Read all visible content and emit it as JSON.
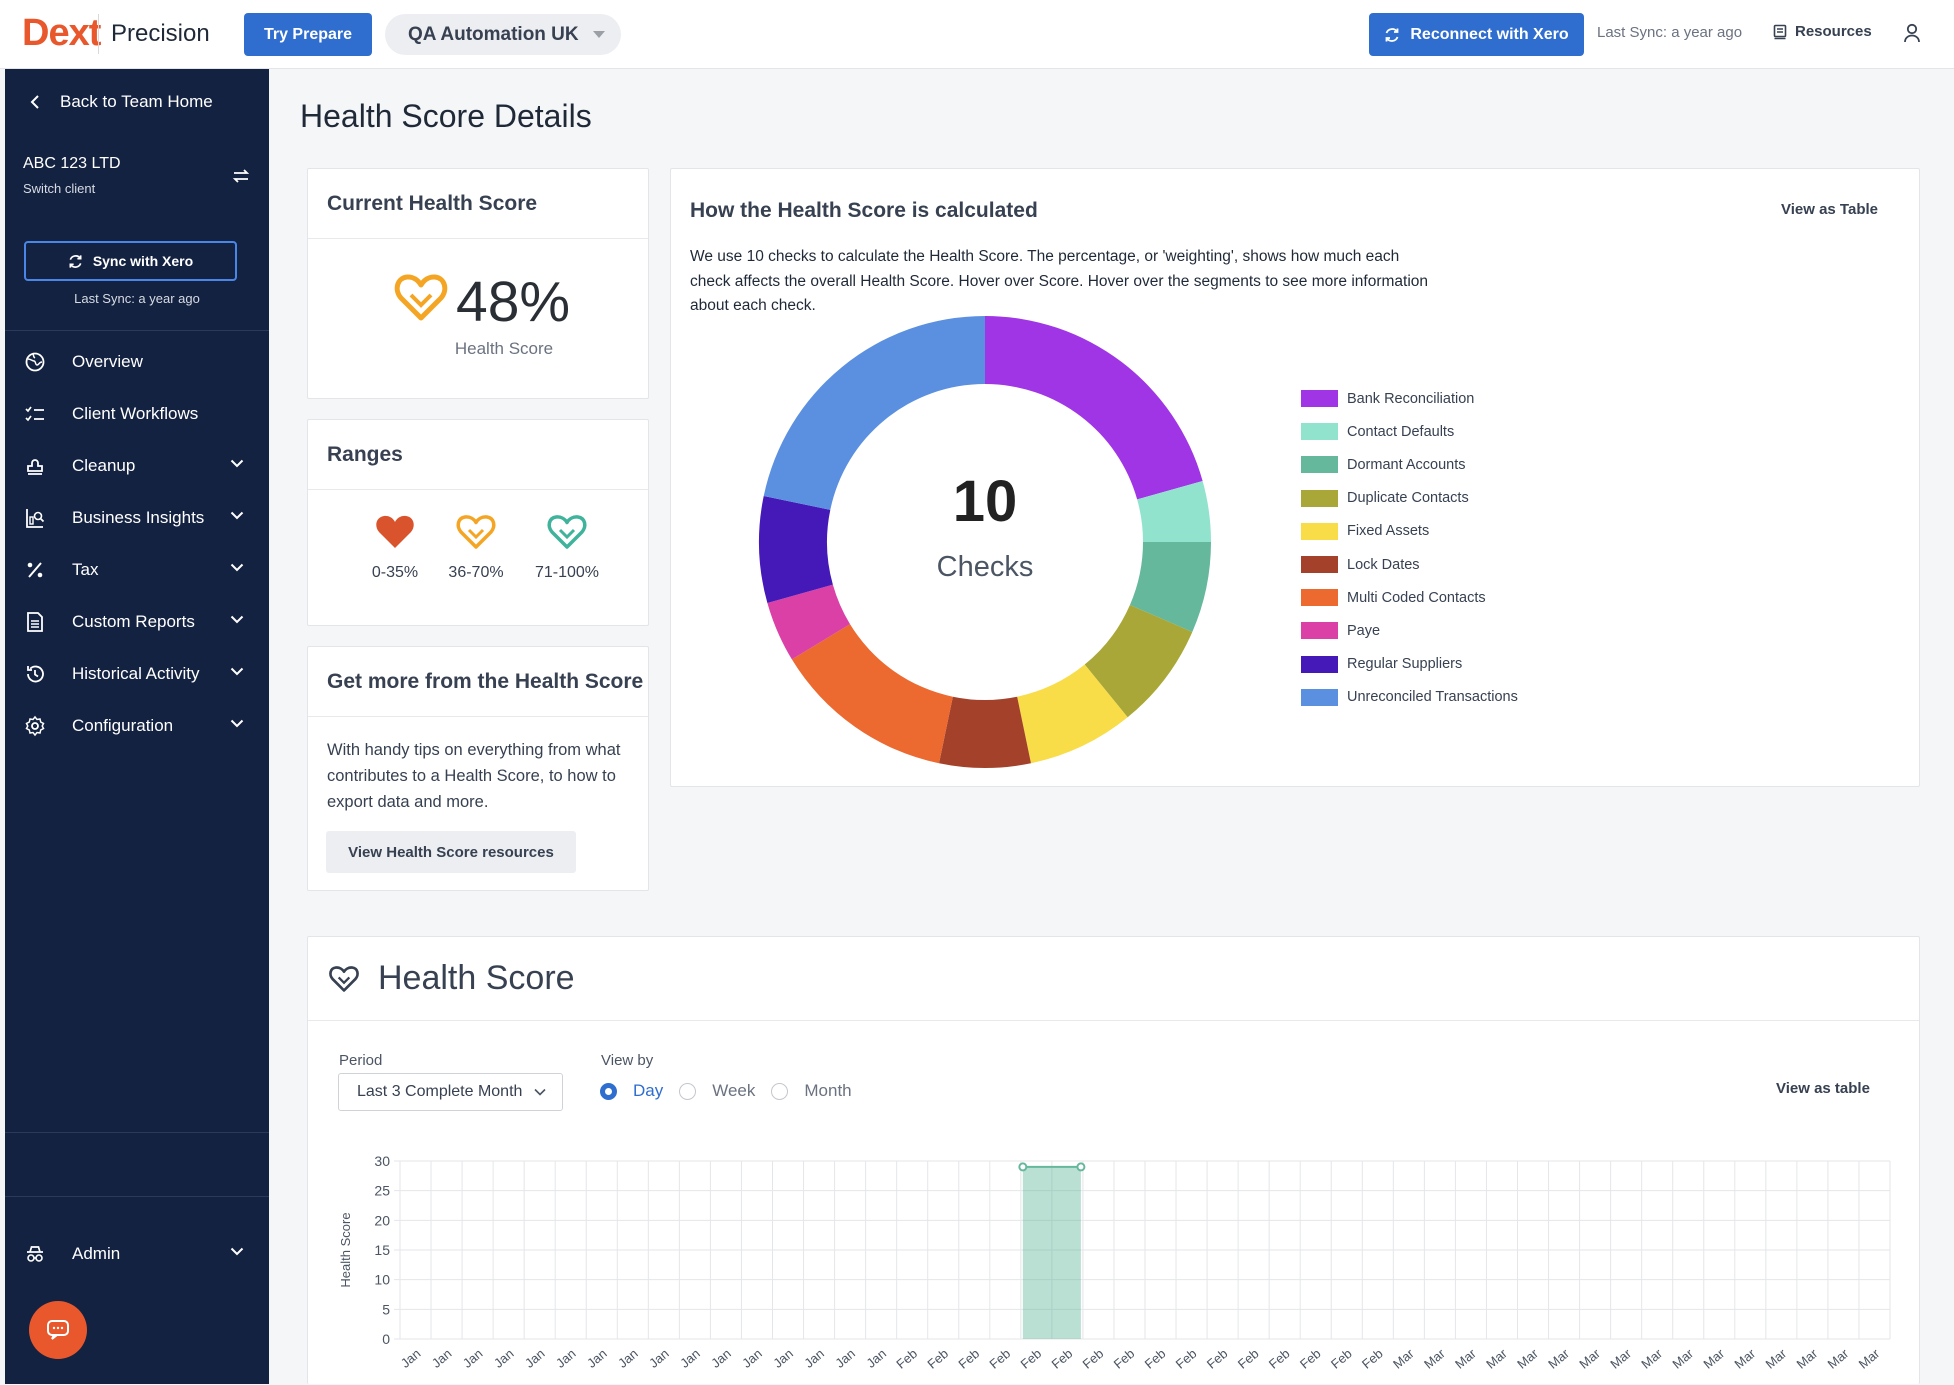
{
  "topbar": {
    "logo_brand": "Dext",
    "logo_product": "Precision",
    "try_prepare": "Try Prepare",
    "client_selector": "QA Automation UK",
    "reconnect": "Reconnect with Xero",
    "last_sync": "Last Sync: a year ago",
    "resources": "Resources"
  },
  "sidebar": {
    "back": "Back to Team Home",
    "client_name": "ABC 123 LTD",
    "switch_client": "Switch client",
    "sync_button": "Sync with Xero",
    "last_sync": "Last Sync: a year ago",
    "items": [
      {
        "label": "Overview",
        "icon": "globe-icon",
        "expandable": false
      },
      {
        "label": "Client Workflows",
        "icon": "checklist-icon",
        "expandable": false
      },
      {
        "label": "Cleanup",
        "icon": "stamp-icon",
        "expandable": true
      },
      {
        "label": "Business Insights",
        "icon": "chart-magnify-icon",
        "expandable": true
      },
      {
        "label": "Tax",
        "icon": "percent-icon",
        "expandable": true
      },
      {
        "label": "Custom Reports",
        "icon": "document-icon",
        "expandable": true
      },
      {
        "label": "Historical Activity",
        "icon": "history-icon",
        "expandable": true
      },
      {
        "label": "Configuration",
        "icon": "cog-icon",
        "expandable": true
      }
    ],
    "admin": "Admin"
  },
  "page": {
    "title": "Health Score Details"
  },
  "current_score": {
    "title": "Current Health Score",
    "value": "48%",
    "label": "Health Score",
    "accent": "#f5a524"
  },
  "ranges": {
    "title": "Ranges",
    "items": [
      {
        "label": "0-35%",
        "color": "#d9532c",
        "filled": true
      },
      {
        "label": "36-70%",
        "color": "#f5a524",
        "filled": false
      },
      {
        "label": "71-100%",
        "color": "#3fb39b",
        "filled": false
      }
    ]
  },
  "tips": {
    "title": "Get more from the Health Score",
    "text": "With handy tips on everything from what contributes to a Health Score, to how to export data and more.",
    "button": "View Health Score resources"
  },
  "calculation": {
    "title": "How the Health Score is calculated",
    "view_table": "View as Table",
    "description": "We use 10 checks to calculate the Health Score. The percentage, or 'weighting', shows how much each check affects the overall Health Score. Hover over Score. Hover over the segments to see more information about each check.",
    "center_value": "10",
    "center_label": "Checks"
  },
  "health_history": {
    "title": "Health Score",
    "period_label": "Period",
    "period_value": "Last 3 Complete Month",
    "view_by_label": "View by",
    "view_by_options": [
      "Day",
      "Week",
      "Month"
    ],
    "view_by_selected": "Day",
    "view_table": "View as table"
  },
  "chart_data": [
    {
      "type": "pie",
      "center_text": "10 Checks",
      "categories": [
        "Bank Reconciliation",
        "Contact Defaults",
        "Dormant Accounts",
        "Duplicate Contacts",
        "Fixed Assets",
        "Lock Dates",
        "Multi Coded Contacts",
        "Paye",
        "Regular Suppliers",
        "Unreconciled Transactions"
      ],
      "values": [
        19,
        4,
        6,
        7,
        7,
        6,
        12,
        4,
        7,
        20
      ],
      "colors": [
        "#a035e6",
        "#92e3ce",
        "#66b89d",
        "#a9a737",
        "#f8dc48",
        "#a3412a",
        "#ec692f",
        "#da40a6",
        "#4518b8",
        "#5b90e0"
      ],
      "legend": "right"
    },
    {
      "type": "area",
      "title": "Health Score",
      "xlabel": "",
      "ylabel": "Health Score",
      "ylim": [
        0,
        30
      ],
      "yticks": [
        0,
        5,
        10,
        15,
        20,
        25,
        30
      ],
      "grid": true,
      "x_tick_labels": [
        "Jan",
        "Jan",
        "Jan",
        "Jan",
        "Jan",
        "Jan",
        "Jan",
        "Jan",
        "Jan",
        "Jan",
        "Jan",
        "Jan",
        "Jan",
        "Jan",
        "Jan",
        "Jan",
        "Feb",
        "Feb",
        "Feb",
        "Feb",
        "Feb",
        "Feb",
        "Feb",
        "Feb",
        "Feb",
        "Feb",
        "Feb",
        "Feb",
        "Feb",
        "Feb",
        "Feb",
        "Feb",
        "Mar",
        "Mar",
        "Mar",
        "Mar",
        "Mar",
        "Mar",
        "Mar",
        "Mar",
        "Mar",
        "Mar",
        "Mar",
        "Mar",
        "Mar",
        "Mar",
        "Mar",
        "Mar"
      ],
      "series": [
        {
          "values": [
            null,
            null,
            null,
            null,
            null,
            null,
            null,
            null,
            null,
            null,
            null,
            null,
            null,
            null,
            null,
            null,
            null,
            null,
            null,
            null,
            29,
            29,
            null,
            null,
            null,
            null,
            null,
            null,
            null,
            null,
            null,
            null,
            null,
            null,
            null,
            null,
            null,
            null,
            null,
            null,
            null,
            null,
            null,
            null,
            null,
            null,
            null,
            null
          ],
          "color": "#66b89d"
        }
      ]
    }
  ]
}
